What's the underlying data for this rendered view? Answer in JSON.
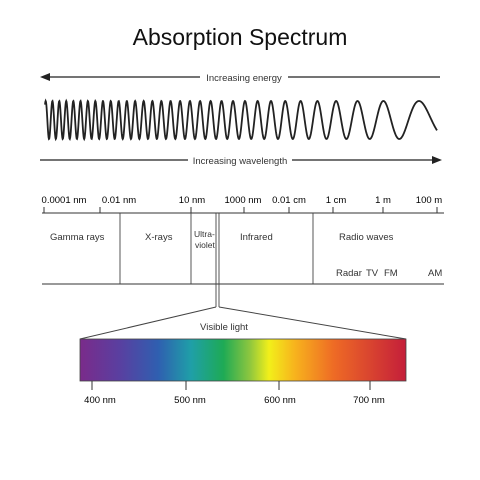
{
  "title": "Absorption Spectrum",
  "energy_label": "Increasing energy",
  "wavelength_label": "Increasing wavelength",
  "scale_labels": [
    "0.0001 nm",
    "0.01 nm",
    "10 nm",
    "1000 nm",
    "0.01 cm",
    "1 cm",
    "1 m",
    "100 m"
  ],
  "regions": {
    "gamma": "Gamma rays",
    "xrays": "X-rays",
    "uv_line1": "Ultra-",
    "uv_line2": "violet",
    "infrared": "Infrared",
    "radio": "Radio waves",
    "radar": "Radar",
    "tv": "TV",
    "fm": "FM",
    "am": "AM"
  },
  "visible_label": "Visible light",
  "visible_ticks": [
    "400 nm",
    "500 nm",
    "600 nm",
    "700 nm"
  ]
}
